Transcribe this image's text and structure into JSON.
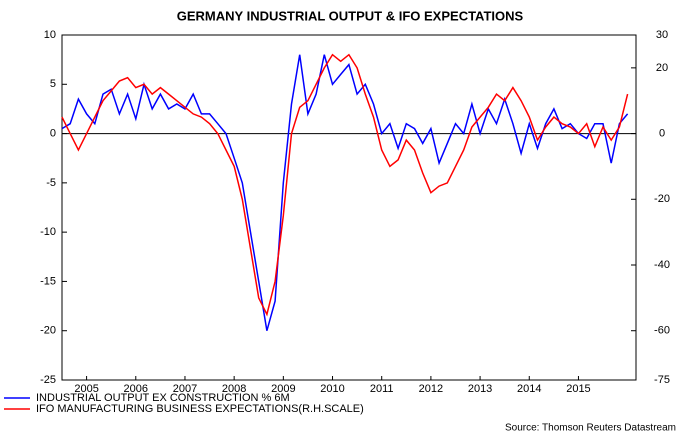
{
  "chart_data": {
    "type": "line",
    "title": "GERMANY INDUSTRIAL OUTPUT & IFO EXPECTATIONS",
    "source": "Source: Thomson Reuters Datastream",
    "xlim": [
      2005,
      2016.67
    ],
    "xticks": [
      {
        "value": 2005.5,
        "label": "2005"
      },
      {
        "value": 2006.5,
        "label": "2006"
      },
      {
        "value": 2007.5,
        "label": "2007"
      },
      {
        "value": 2008.5,
        "label": "2008"
      },
      {
        "value": 2009.5,
        "label": "2009"
      },
      {
        "value": 2010.5,
        "label": "2010"
      },
      {
        "value": 2011.5,
        "label": "2011"
      },
      {
        "value": 2012.5,
        "label": "2012"
      },
      {
        "value": 2013.5,
        "label": "2013"
      },
      {
        "value": 2014.5,
        "label": "2014"
      },
      {
        "value": 2015.5,
        "label": "2015"
      }
    ],
    "ylim": [
      -25,
      10
    ],
    "yticks": [
      10,
      5,
      0,
      -5,
      -10,
      -15,
      -20,
      -25
    ],
    "y2lim": [
      -75,
      30
    ],
    "y2ticks": [
      30,
      20,
      0,
      -20,
      -40,
      -60,
      -75
    ],
    "series": [
      {
        "name": "INDUSTRIAL OUTPUT EX CONSTRUCTION % 6M",
        "color": "#0000ff",
        "axis": "y",
        "values": [
          0.5,
          1,
          3.5,
          2,
          1,
          4,
          4.5,
          2,
          4,
          1.5,
          5,
          2.5,
          4,
          2.5,
          3,
          2.5,
          4,
          2,
          2,
          1,
          0,
          -2.5,
          -5,
          -10,
          -15,
          -20,
          -17,
          -5,
          3,
          8,
          2,
          4,
          8,
          5,
          6,
          7,
          4,
          5,
          3,
          0,
          1,
          -1.5,
          1,
          0.5,
          -1,
          0.5,
          -3,
          -1,
          1,
          0,
          3,
          0,
          2.5,
          1,
          3.5,
          1,
          -2,
          1,
          -1.5,
          1,
          2.5,
          0.5,
          1,
          0,
          -0.5,
          1,
          1,
          -3,
          1,
          2
        ]
      },
      {
        "name": "IFO MANUFACTURING BUSINESS EXPECTATIONS(R.H.SCALE)",
        "color": "#ff0000",
        "axis": "y2",
        "values": [
          5,
          0,
          -5,
          0,
          5,
          10,
          13,
          16,
          17,
          14,
          15,
          12,
          14,
          12,
          10,
          8,
          6,
          5,
          3,
          0,
          -5,
          -10,
          -20,
          -35,
          -50,
          -55,
          -45,
          -25,
          0,
          8,
          10,
          15,
          20,
          24,
          22,
          24,
          20,
          12,
          5,
          -5,
          -10,
          -8,
          -2,
          -5,
          -12,
          -18,
          -16,
          -15,
          -10,
          -5,
          2,
          5,
          8,
          12,
          10,
          14,
          10,
          5,
          -2,
          2,
          5,
          3,
          2,
          0,
          3,
          -4,
          2,
          -2,
          2,
          12
        ]
      }
    ]
  }
}
